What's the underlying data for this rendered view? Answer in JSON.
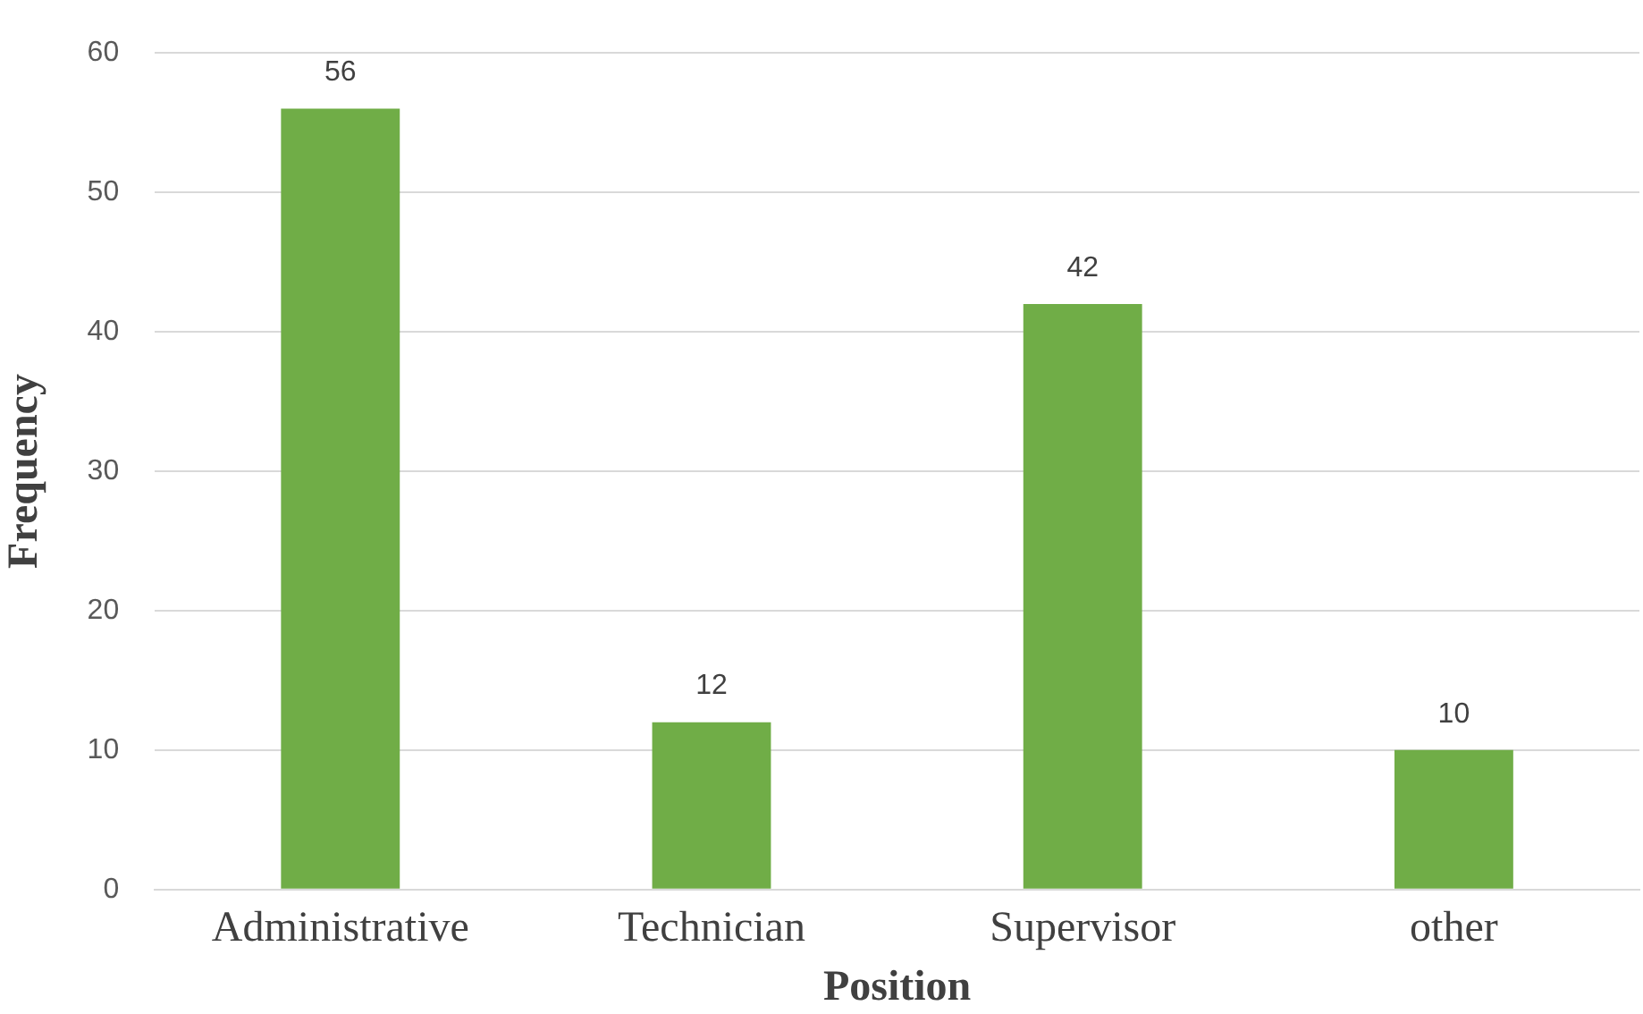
{
  "chart_data": {
    "type": "bar",
    "xlabel": "Position",
    "ylabel": "Frequency",
    "categories": [
      "Administrative",
      "Technician",
      "Supervisor",
      "other"
    ],
    "values": [
      56,
      12,
      42,
      10
    ],
    "color": "#70ad47",
    "ylim": [
      0,
      60
    ],
    "yticks": [
      0,
      10,
      20,
      30,
      40,
      50,
      60
    ],
    "grid": "y",
    "data_labels": true,
    "legend": false
  }
}
